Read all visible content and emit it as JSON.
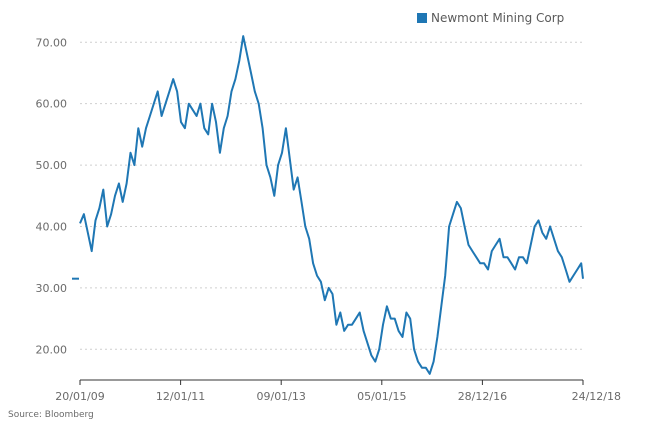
{
  "chart_data": {
    "type": "line",
    "title": "",
    "xlabel": "",
    "ylabel": "",
    "ylim": [
      15,
      72
    ],
    "grid": "horizontal dotted",
    "legend_position": "top-right",
    "y_ticks": [
      "20.00",
      "30.00",
      "40.00",
      "50.00",
      "60.00",
      "70.00"
    ],
    "x_ticks": [
      "20/01/09",
      "12/01/11",
      "09/01/13",
      "05/01/15",
      "28/12/16",
      "24/12/18"
    ],
    "x_range": [
      "2009-01-20",
      "2018-12-24"
    ],
    "source": "Source: Bloomberg",
    "colors": {
      "series": "#1f77b4",
      "grid": "#cfcfcf",
      "axis": "#333333",
      "text": "#6b6b6b"
    },
    "series": [
      {
        "name": "Newmont Mining Corp",
        "x": [
          "2009-01-20",
          "2009-02-17",
          "2009-03-17",
          "2009-04-14",
          "2009-05-12",
          "2009-06-09",
          "2009-07-07",
          "2009-08-04",
          "2009-09-01",
          "2009-09-29",
          "2009-10-27",
          "2009-11-24",
          "2009-12-22",
          "2010-01-19",
          "2010-02-16",
          "2010-03-16",
          "2010-04-13",
          "2010-05-11",
          "2010-06-08",
          "2010-07-06",
          "2010-08-03",
          "2010-08-31",
          "2010-09-28",
          "2010-10-26",
          "2010-11-23",
          "2010-12-21",
          "2011-01-18",
          "2011-02-15",
          "2011-03-15",
          "2011-04-12",
          "2011-05-10",
          "2011-06-07",
          "2011-07-05",
          "2011-08-02",
          "2011-08-30",
          "2011-09-27",
          "2011-10-25",
          "2011-11-22",
          "2011-12-20",
          "2012-01-17",
          "2012-02-14",
          "2012-03-13",
          "2012-04-10",
          "2012-05-08",
          "2012-06-05",
          "2012-07-03",
          "2012-07-31",
          "2012-08-28",
          "2012-09-25",
          "2012-10-23",
          "2012-11-20",
          "2012-12-18",
          "2013-01-15",
          "2013-02-12",
          "2013-03-12",
          "2013-04-09",
          "2013-05-07",
          "2013-06-04",
          "2013-07-02",
          "2013-07-30",
          "2013-08-27",
          "2013-09-24",
          "2013-10-22",
          "2013-11-19",
          "2013-12-17",
          "2014-01-14",
          "2014-02-11",
          "2014-03-11",
          "2014-04-08",
          "2014-05-06",
          "2014-06-03",
          "2014-07-01",
          "2014-07-29",
          "2014-08-26",
          "2014-09-23",
          "2014-10-21",
          "2014-11-18",
          "2014-12-16",
          "2015-01-13",
          "2015-02-10",
          "2015-03-10",
          "2015-04-07",
          "2015-05-05",
          "2015-06-02",
          "2015-06-30",
          "2015-07-28",
          "2015-08-25",
          "2015-09-22",
          "2015-10-20",
          "2015-11-17",
          "2015-12-15",
          "2016-01-12",
          "2016-02-09",
          "2016-03-08",
          "2016-04-05",
          "2016-05-03",
          "2016-05-31",
          "2016-06-28",
          "2016-07-26",
          "2016-08-23",
          "2016-09-20",
          "2016-10-18",
          "2016-11-15",
          "2016-12-13",
          "2017-01-10",
          "2017-02-07",
          "2017-03-07",
          "2017-04-04",
          "2017-05-02",
          "2017-05-30",
          "2017-06-27",
          "2017-07-25",
          "2017-08-22",
          "2017-09-19",
          "2017-10-17",
          "2017-11-14",
          "2017-12-12",
          "2018-01-09",
          "2018-02-06",
          "2018-03-06",
          "2018-04-03",
          "2018-05-01",
          "2018-05-29",
          "2018-06-26",
          "2018-07-24",
          "2018-08-21",
          "2018-09-18",
          "2018-10-16",
          "2018-11-13",
          "2018-12-11",
          "2018-12-24"
        ],
        "values": [
          40.5,
          42,
          39,
          36,
          41,
          43,
          46,
          40,
          42,
          45,
          47,
          44,
          47,
          52,
          50,
          56,
          53,
          56,
          58,
          60,
          62,
          58,
          60,
          62,
          64,
          62,
          57,
          56,
          60,
          59,
          58,
          60,
          56,
          55,
          60,
          57,
          52,
          56,
          58,
          62,
          64,
          67,
          71,
          68,
          65,
          62,
          60,
          56,
          50,
          48,
          45,
          50,
          52,
          56,
          51,
          46,
          48,
          44,
          40,
          38,
          34,
          32,
          31,
          28,
          30,
          29,
          24,
          26,
          23,
          24,
          24,
          25,
          26,
          23,
          21,
          19,
          18,
          20,
          24,
          27,
          25,
          25,
          23,
          22,
          26,
          25,
          20,
          18,
          17,
          17,
          16,
          18,
          22,
          27,
          32,
          40,
          42,
          44,
          43,
          40,
          37,
          36,
          35,
          34,
          34,
          33,
          36,
          37,
          38,
          35,
          35,
          34,
          33,
          35,
          35,
          34,
          37,
          40,
          41,
          39,
          38,
          40,
          38,
          36,
          35,
          33,
          31,
          32,
          33,
          34,
          31.5
        ]
      }
    ],
    "initial_marker_value": 31.5
  }
}
